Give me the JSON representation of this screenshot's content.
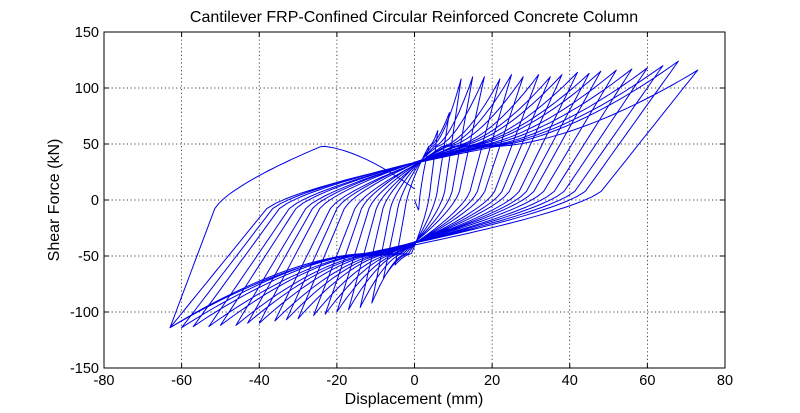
{
  "chart_data": {
    "type": "line",
    "title": "Cantilever FRP-Confined Circular Reinforced Concrete Column",
    "xlabel": "Displacement (mm)",
    "ylabel": "Shear Force (kN)",
    "xlim": [
      -80,
      80
    ],
    "ylim": [
      -150,
      150
    ],
    "xticks": [
      -80,
      -60,
      -40,
      -20,
      0,
      20,
      40,
      60,
      80
    ],
    "yticks": [
      -150,
      -100,
      -50,
      0,
      50,
      100,
      150
    ],
    "grid": true,
    "line_color": "#0000e6",
    "series": [
      {
        "cycles": [
          {
            "xmax": 6,
            "xmin": -5,
            "fmax": 62,
            "fmin": -58
          },
          {
            "xmax": 9,
            "xmin": -8,
            "fmax": 78,
            "fmin": -70
          },
          {
            "xmax": 12,
            "xmin": -11,
            "fmax": 108,
            "fmin": -92
          },
          {
            "xmax": 15,
            "xmin": -14,
            "fmax": 110,
            "fmin": -96
          },
          {
            "xmax": 18,
            "xmin": -17,
            "fmax": 110,
            "fmin": -98
          },
          {
            "xmax": 22,
            "xmin": -20,
            "fmax": 108,
            "fmin": -100
          },
          {
            "xmax": 25,
            "xmin": -23,
            "fmax": 112,
            "fmin": -102
          },
          {
            "xmax": 28,
            "xmin": -26,
            "fmax": 110,
            "fmin": -103
          },
          {
            "xmax": 32,
            "xmin": -30,
            "fmax": 112,
            "fmin": -106
          },
          {
            "xmax": 35,
            "xmin": -33,
            "fmax": 110,
            "fmin": -107
          },
          {
            "xmax": 38,
            "xmin": -36,
            "fmax": 112,
            "fmin": -108
          },
          {
            "xmax": 42,
            "xmin": -40,
            "fmax": 114,
            "fmin": -110
          },
          {
            "xmax": 45,
            "xmin": -43,
            "fmax": 113,
            "fmin": -110
          },
          {
            "xmax": 48,
            "xmin": -46,
            "fmax": 115,
            "fmin": -112
          },
          {
            "xmax": 52,
            "xmin": -50,
            "fmax": 116,
            "fmin": -112
          },
          {
            "xmax": 56,
            "xmin": -53,
            "fmax": 117,
            "fmin": -113
          },
          {
            "xmax": 60,
            "xmin": -57,
            "fmax": 118,
            "fmin": -113
          },
          {
            "xmax": 64,
            "xmin": -60,
            "fmax": 120,
            "fmin": -114
          },
          {
            "xmax": 68,
            "xmin": -63,
            "fmax": 124,
            "fmin": -114
          },
          {
            "xmax": 73,
            "xmin": -63,
            "fmax": 116,
            "fmin": -114
          }
        ]
      }
    ]
  }
}
